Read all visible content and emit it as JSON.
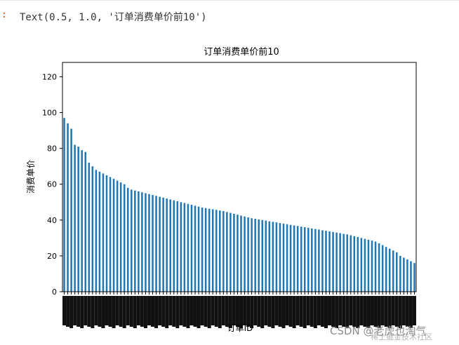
{
  "cell_output": {
    "prompt": ":",
    "text": "Text(0.5, 1.0, '订单消费单价前10')"
  },
  "chart_data": {
    "type": "bar",
    "title": "订单消费单价前10",
    "xlabel": "订单ID",
    "ylabel": "消费单价",
    "ylim": [
      0,
      128
    ],
    "yticks": [
      0,
      20,
      40,
      60,
      80,
      100,
      120
    ],
    "x_tick_labels_legible": false,
    "color": "#1f77b4",
    "values": [
      97,
      94,
      91,
      82,
      81,
      79,
      78,
      72,
      70,
      68,
      67,
      66,
      65,
      64,
      63,
      62,
      61,
      60,
      58,
      57,
      56.5,
      56,
      55.5,
      55,
      54.5,
      54,
      53.5,
      53,
      52.5,
      52,
      51.5,
      51,
      50.5,
      50,
      49.5,
      49,
      48.5,
      48,
      47.5,
      47,
      46.7,
      46.3,
      46,
      45.7,
      45.3,
      45,
      44.5,
      44,
      43.5,
      43,
      42.5,
      42,
      41.5,
      41,
      40.7,
      40.3,
      40,
      39.7,
      39.3,
      39,
      38.7,
      38.3,
      38,
      37.7,
      37.3,
      37,
      36.7,
      36.3,
      36,
      35.7,
      35.3,
      35,
      34.7,
      34.3,
      34,
      33.7,
      33.3,
      33,
      32.7,
      32.3,
      32,
      31.5,
      31,
      30.5,
      30,
      29.5,
      29,
      28.5,
      28,
      27,
      26,
      25,
      24,
      23,
      22,
      20,
      19,
      18,
      17,
      16
    ]
  },
  "watermark": {
    "main": "CSDN @老虎也淘气",
    "sub": "稀土掘金技术社区"
  }
}
